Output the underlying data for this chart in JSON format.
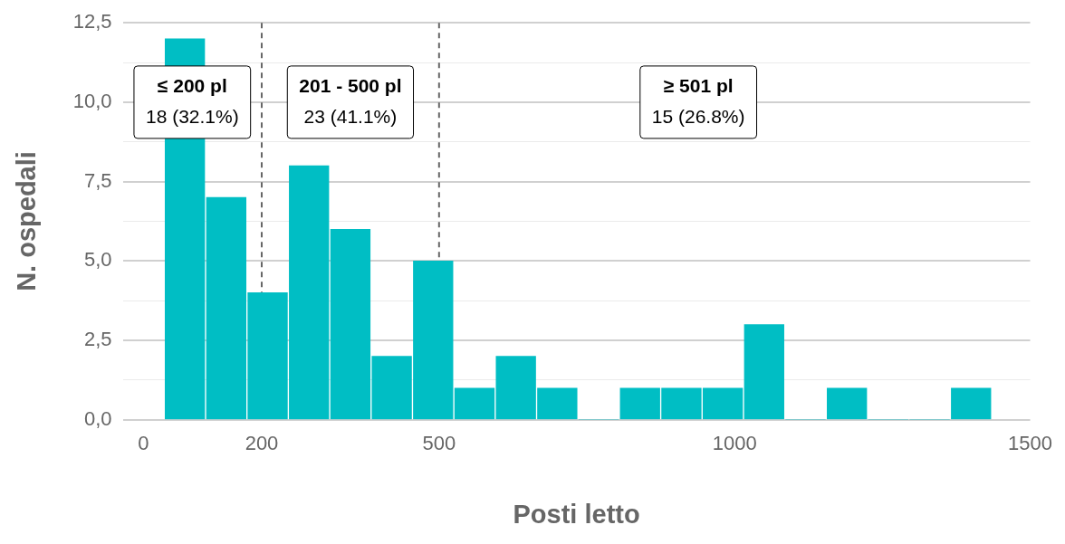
{
  "chart_data": {
    "type": "histogram",
    "xlabel": "Posti letto",
    "ylabel": "N. ospedali",
    "bins": [
      35,
      105,
      175,
      245,
      315,
      385,
      455,
      525,
      595,
      665,
      735,
      805,
      875,
      945,
      1015,
      1085,
      1155,
      1225,
      1295,
      1365,
      1435
    ],
    "values": [
      12,
      7,
      4,
      8,
      6,
      2,
      5,
      1,
      2,
      1,
      0,
      1,
      1,
      1,
      3,
      0,
      1,
      0,
      0,
      1
    ],
    "color": "#00bec4",
    "xlim": [
      -35,
      1500
    ],
    "xticks": [
      0,
      200,
      500,
      1000,
      1500
    ],
    "ylim": [
      0,
      12.5
    ],
    "yticks": [
      {
        "value": 0,
        "label": "0,0"
      },
      {
        "value": 1.25,
        "label": null
      },
      {
        "value": 2.5,
        "label": "2,5"
      },
      {
        "value": 3.75,
        "label": null
      },
      {
        "value": 5,
        "label": "5,0"
      },
      {
        "value": 6.25,
        "label": null
      },
      {
        "value": 7.5,
        "label": "7,5"
      },
      {
        "value": 8.75,
        "label": null
      },
      {
        "value": 10,
        "label": "10,0"
      },
      {
        "value": 11.25,
        "label": null
      },
      {
        "value": 12.5,
        "label": "12,5"
      }
    ],
    "grid": "y",
    "ref_lines": [
      {
        "axis": "x",
        "value": 200,
        "color": "#666666",
        "line_style": "dashed"
      },
      {
        "axis": "x",
        "value": 500,
        "color": "#666666",
        "line_style": "dashed"
      }
    ],
    "annotations": [
      "≤ 200 pl\n18 (32.1%)",
      "201 - 500 pl\n23 (41.1%)",
      "≥ 501 pl\n15 (26.8%)"
    ]
  }
}
